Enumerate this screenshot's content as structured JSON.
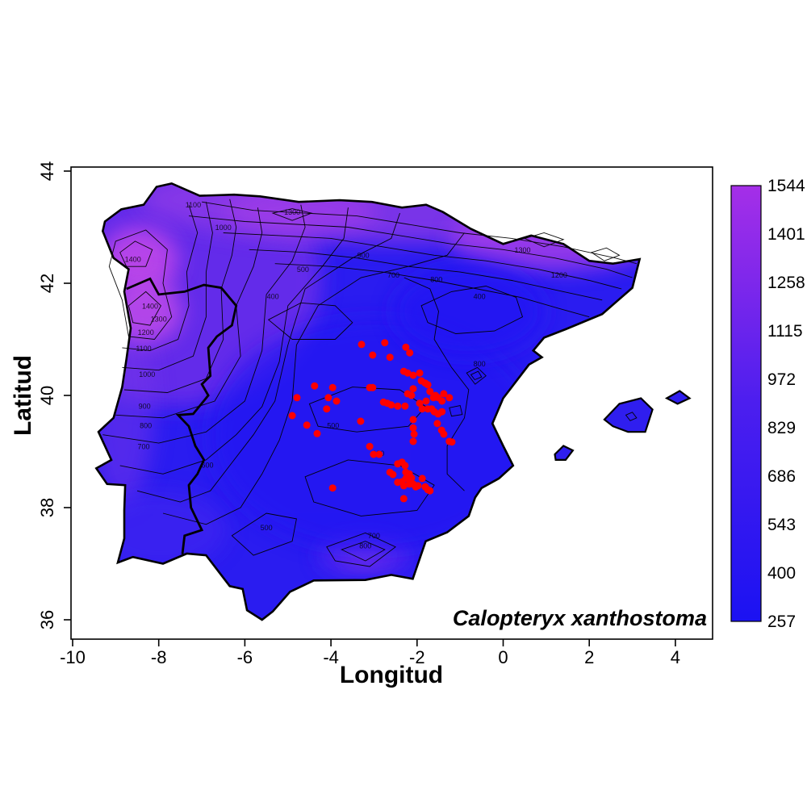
{
  "figure": {
    "species_label": "Calopteryx xanthostoma",
    "xlabel": "Longitud",
    "ylabel": "Latitud"
  },
  "axes": {
    "x_ticks": [
      -10,
      -8,
      -6,
      -4,
      -2,
      0,
      2,
      4
    ],
    "y_ticks": [
      36,
      38,
      40,
      42,
      44
    ]
  },
  "legend": {
    "tick_values": [
      1544,
      1401,
      1258,
      1115,
      972,
      829,
      686,
      543,
      400,
      257
    ],
    "min_value": 257,
    "max_value": 1544,
    "color_low": "#1b12f2",
    "color_mid": "#4c1eef",
    "color_high": "#a52fe8"
  },
  "colors": {
    "point": "#ff0000",
    "contour_line": "#000000",
    "coastline": "#000000",
    "land_base": "#2a1cf0",
    "background": "#ffffff"
  },
  "chart_data": {
    "type": "scatter",
    "subtype": "filled-contour-map-with-occurrences",
    "title": "",
    "xlabel": "Longitud",
    "ylabel": "Latitud",
    "xlim": [
      -10.1,
      4.9
    ],
    "ylim": [
      35.6,
      44.1
    ],
    "grid": false,
    "legend_position": "right-colorbar",
    "annotation": "Calopteryx xanthostoma",
    "colorbar": {
      "range": [
        257,
        1544
      ],
      "tick_values": [
        257,
        400,
        543,
        686,
        829,
        972,
        1115,
        1258,
        1401,
        1544
      ]
    },
    "contour_labels": [
      {
        "value": 1400,
        "lon": -8.2,
        "lat": 41.55
      },
      {
        "value": 1400,
        "lon": -8.6,
        "lat": 42.38
      },
      {
        "value": 1300,
        "lon": -8.0,
        "lat": 41.32
      },
      {
        "value": 1200,
        "lon": -8.3,
        "lat": 41.08
      },
      {
        "value": 1100,
        "lon": -8.35,
        "lat": 40.79
      },
      {
        "value": 1000,
        "lon": -8.27,
        "lat": 40.33
      },
      {
        "value": 900,
        "lon": -8.33,
        "lat": 39.76
      },
      {
        "value": 800,
        "lon": -8.3,
        "lat": 39.42
      },
      {
        "value": 700,
        "lon": -8.35,
        "lat": 39.04
      },
      {
        "value": 600,
        "lon": -6.87,
        "lat": 38.71
      },
      {
        "value": 1100,
        "lon": -7.2,
        "lat": 43.35
      },
      {
        "value": 1300,
        "lon": -4.9,
        "lat": 43.22
      },
      {
        "value": 1000,
        "lon": -6.5,
        "lat": 42.95
      },
      {
        "value": 900,
        "lon": -3.25,
        "lat": 42.45
      },
      {
        "value": 800,
        "lon": -1.55,
        "lat": 42.02
      },
      {
        "value": 700,
        "lon": -2.55,
        "lat": 42.1
      },
      {
        "value": 500,
        "lon": -4.65,
        "lat": 42.2
      },
      {
        "value": 400,
        "lon": -5.35,
        "lat": 41.72
      },
      {
        "value": 400,
        "lon": -0.55,
        "lat": 41.72
      },
      {
        "value": 1300,
        "lon": 0.45,
        "lat": 42.55
      },
      {
        "value": 1200,
        "lon": 1.3,
        "lat": 42.1
      },
      {
        "value": 600,
        "lon": -2.9,
        "lat": 38.92
      },
      {
        "value": 500,
        "lon": -3.95,
        "lat": 39.42
      },
      {
        "value": 800,
        "lon": -0.55,
        "lat": 40.52
      },
      {
        "value": 700,
        "lon": -3.0,
        "lat": 37.45
      },
      {
        "value": 800,
        "lon": -3.2,
        "lat": 37.27
      },
      {
        "value": 500,
        "lon": -5.5,
        "lat": 37.6
      }
    ],
    "series": [
      {
        "name": "occurrence-points",
        "marker": "filled-circle",
        "color": "#ff0000",
        "points": [
          [
            -3.29,
            40.91
          ],
          [
            -2.75,
            40.94
          ],
          [
            -2.63,
            40.68
          ],
          [
            -3.03,
            40.72
          ],
          [
            -2.26,
            40.86
          ],
          [
            -2.17,
            40.76
          ],
          [
            -2.31,
            40.43
          ],
          [
            -2.22,
            40.4
          ],
          [
            -2.09,
            40.36
          ],
          [
            -1.94,
            40.4
          ],
          [
            -2.09,
            40.12
          ],
          [
            -1.9,
            40.26
          ],
          [
            -1.81,
            40.22
          ],
          [
            -1.75,
            40.19
          ],
          [
            -1.7,
            40.07
          ],
          [
            -1.62,
            39.96
          ],
          [
            -1.79,
            39.9
          ],
          [
            -1.94,
            39.86
          ],
          [
            -1.88,
            39.76
          ],
          [
            -1.75,
            39.76
          ],
          [
            -1.66,
            39.76
          ],
          [
            -1.57,
            40.0
          ],
          [
            -1.51,
            39.96
          ],
          [
            -1.42,
            39.9
          ],
          [
            -1.6,
            39.71
          ],
          [
            -1.51,
            39.67
          ],
          [
            -1.42,
            39.71
          ],
          [
            -1.25,
            39.96
          ],
          [
            -1.38,
            40.03
          ],
          [
            -2.13,
            40.0
          ],
          [
            -2.22,
            40.03
          ],
          [
            -2.78,
            39.88
          ],
          [
            -2.69,
            39.86
          ],
          [
            -2.6,
            39.83
          ],
          [
            -2.45,
            39.81
          ],
          [
            -2.28,
            39.81
          ],
          [
            -3.31,
            39.54
          ],
          [
            -3.1,
            40.14
          ],
          [
            -3.03,
            40.14
          ],
          [
            -4.38,
            40.17
          ],
          [
            -3.96,
            40.14
          ],
          [
            -4.06,
            39.96
          ],
          [
            -3.87,
            39.9
          ],
          [
            -4.1,
            39.76
          ],
          [
            -4.79,
            39.96
          ],
          [
            -4.9,
            39.64
          ],
          [
            -4.56,
            39.47
          ],
          [
            -4.32,
            39.32
          ],
          [
            -2.09,
            39.57
          ],
          [
            -2.09,
            39.42
          ],
          [
            -2.07,
            39.31
          ],
          [
            -2.09,
            39.18
          ],
          [
            -3.1,
            39.09
          ],
          [
            -3.01,
            38.95
          ],
          [
            -2.88,
            38.95
          ],
          [
            -1.53,
            39.5
          ],
          [
            -1.43,
            39.38
          ],
          [
            -1.38,
            39.31
          ],
          [
            -1.25,
            39.18
          ],
          [
            -2.45,
            38.78
          ],
          [
            -2.35,
            38.81
          ],
          [
            -2.28,
            38.75
          ],
          [
            -2.63,
            38.63
          ],
          [
            -2.56,
            38.59
          ],
          [
            -2.26,
            38.63
          ],
          [
            -2.18,
            38.6
          ],
          [
            -2.13,
            38.53
          ],
          [
            -2.26,
            38.52
          ],
          [
            -2.35,
            38.46
          ],
          [
            -2.45,
            38.45
          ],
          [
            -2.31,
            38.39
          ],
          [
            -2.18,
            38.42
          ],
          [
            -2.09,
            38.42
          ],
          [
            -2.03,
            38.37
          ],
          [
            -1.98,
            38.39
          ],
          [
            -1.88,
            38.52
          ],
          [
            -1.81,
            38.37
          ],
          [
            -1.75,
            38.32
          ],
          [
            -1.7,
            38.3
          ],
          [
            -3.96,
            38.35
          ],
          [
            -2.31,
            38.16
          ],
          [
            -1.19,
            39.17
          ]
        ]
      }
    ]
  }
}
